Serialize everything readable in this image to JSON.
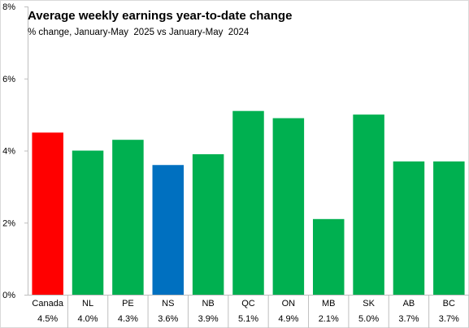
{
  "chart_data": {
    "type": "bar",
    "title": "Average weekly earnings year-to-date change",
    "subtitle": "% change, January-May  2025 vs January-May  2024",
    "categories": [
      "Canada",
      "NL",
      "PE",
      "NS",
      "NB",
      "QC",
      "ON",
      "MB",
      "SK",
      "AB",
      "BC"
    ],
    "values": [
      4.5,
      4.0,
      4.3,
      3.6,
      3.9,
      5.1,
      4.9,
      2.1,
      5.0,
      3.7,
      3.7
    ],
    "value_labels": [
      "4.5%",
      "4.0%",
      "4.3%",
      "3.6%",
      "3.9%",
      "5.1%",
      "4.9%",
      "2.1%",
      "5.0%",
      "3.7%",
      "3.7%"
    ],
    "bar_colors": [
      "#ff0000",
      "#00b050",
      "#00b050",
      "#0070c0",
      "#00b050",
      "#00b050",
      "#00b050",
      "#00b050",
      "#00b050",
      "#00b050",
      "#00b050"
    ],
    "yticks": [
      0,
      2,
      4,
      6,
      8
    ],
    "ytick_labels": [
      "0%",
      "2%",
      "4%",
      "6%",
      "8%"
    ],
    "ylim": [
      0,
      8
    ],
    "xlabel": "",
    "ylabel": "",
    "grid": false,
    "legend": "none"
  },
  "colors": {
    "axis": "#bfbfbf",
    "canada": "#ff0000",
    "province": "#00b050",
    "highlight": "#0070c0"
  }
}
